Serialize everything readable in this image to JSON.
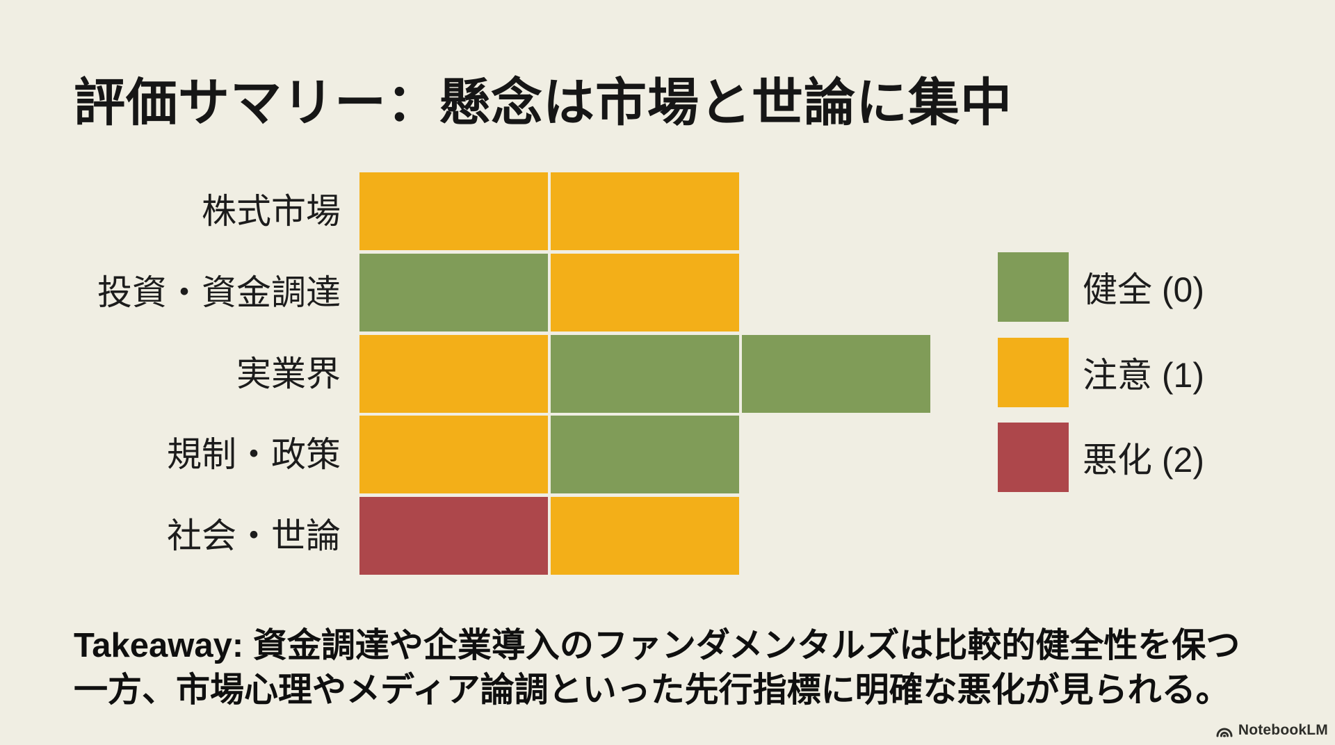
{
  "slide": {
    "title": "評価サマリー：懸念は市場と世論に集中",
    "takeaway_line1": "Takeaway: 資金調達や企業導入のファンダメンタルズは比較的健全性を保つ",
    "takeaway_line2": "一方、市場心理やメディア論調といった先行指標に明確な悪化が見られる。",
    "watermark": "NotebookLM"
  },
  "colors": {
    "background": "#F0EEE3",
    "healthy": "#809C58",
    "caution": "#F3AF18",
    "worsening": "#AD474B",
    "text": "#1c1c1c"
  },
  "legend": [
    {
      "label": "健全 (0)",
      "level": "healthy",
      "value": 0
    },
    {
      "label": "注意 (1)",
      "level": "caution",
      "value": 1
    },
    {
      "label": "悪化 (2)",
      "level": "worsening",
      "value": 2
    }
  ],
  "chart_data": {
    "type": "heatmap",
    "title": "評価サマリー：懸念は市場と世論に集中",
    "scale": {
      "健全": 0,
      "注意": 1,
      "悪化": 2
    },
    "legend_position": "right",
    "rows": [
      {
        "label": "株式市場",
        "cells": [
          "caution",
          "caution"
        ],
        "values": [
          1,
          1
        ]
      },
      {
        "label": "投資・資金調達",
        "cells": [
          "healthy",
          "caution"
        ],
        "values": [
          0,
          1
        ]
      },
      {
        "label": "実業界",
        "cells": [
          "caution",
          "healthy",
          "healthy"
        ],
        "values": [
          1,
          0,
          0
        ]
      },
      {
        "label": "規制・政策",
        "cells": [
          "caution",
          "healthy"
        ],
        "values": [
          1,
          0
        ]
      },
      {
        "label": "社会・世論",
        "cells": [
          "worsening",
          "caution"
        ],
        "values": [
          2,
          1
        ]
      }
    ]
  }
}
